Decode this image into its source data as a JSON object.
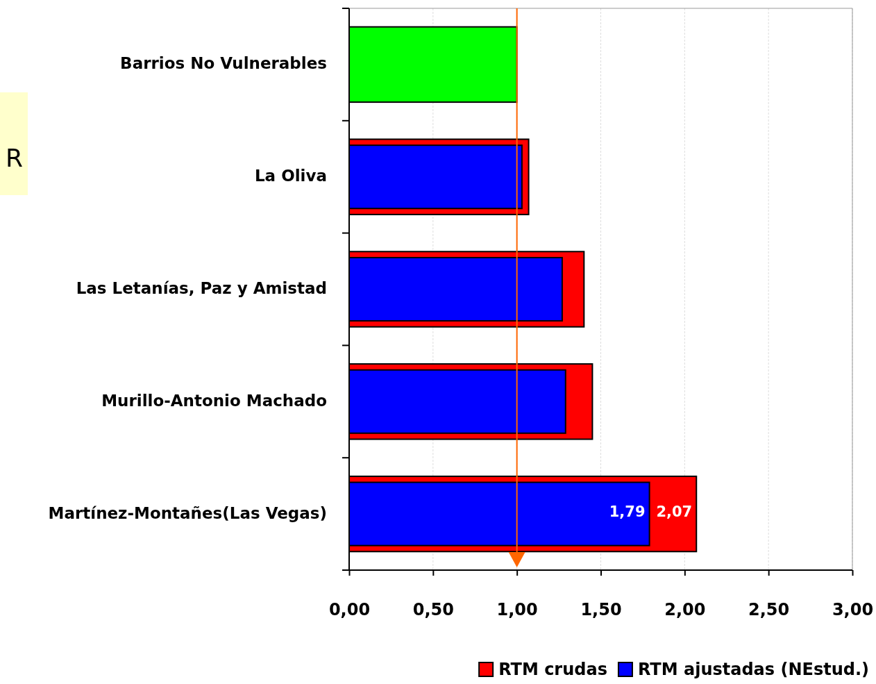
{
  "chart_data": {
    "type": "bar",
    "orientation": "horizontal",
    "categories": [
      "Barrios No Vulnerables",
      "La Oliva",
      "Las Letanías, Paz y Amistad",
      "Murillo-Antonio Machado",
      "Martínez-Montañes(Las Vegas)"
    ],
    "series": [
      {
        "name": "RTM crudas",
        "color": "#ff0000",
        "values": [
          null,
          1.07,
          1.4,
          1.45,
          2.07
        ],
        "value_labels": [
          null,
          null,
          null,
          null,
          "2,07"
        ]
      },
      {
        "name": "RTM ajustadas (NEstud.)",
        "color": "#0000ff",
        "values": [
          null,
          1.03,
          1.27,
          1.29,
          1.79
        ],
        "value_labels": [
          null,
          null,
          null,
          null,
          "1,79"
        ]
      },
      {
        "color": "#00ff00",
        "values": [
          1.0,
          null,
          null,
          null,
          null
        ]
      }
    ],
    "xlim": [
      0,
      3
    ],
    "xticks": [
      {
        "value": 0,
        "label": "0,00"
      },
      {
        "value": 0.5,
        "label": "0,50"
      },
      {
        "value": 1,
        "label": "1,00"
      },
      {
        "value": 1.5,
        "label": "1,50"
      },
      {
        "value": 2,
        "label": "2,00"
      },
      {
        "value": 2.5,
        "label": "2,50"
      },
      {
        "value": 3,
        "label": "3,00"
      }
    ],
    "grid": "x",
    "legend": "bottom",
    "ref_lines": [
      {
        "axis": "x",
        "value": 1,
        "color": "#ff6600"
      }
    ],
    "annotations": [
      "R"
    ]
  }
}
